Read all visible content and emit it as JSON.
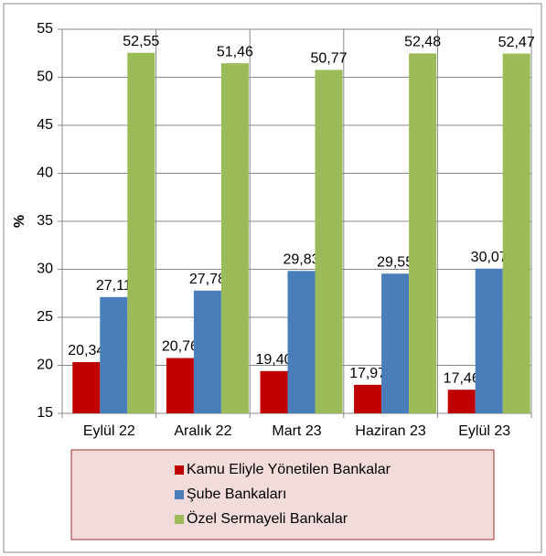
{
  "chart_data": {
    "type": "bar",
    "categories": [
      "Eylül 22",
      "Aralık 22",
      "Mart 23",
      "Haziran 23",
      "Eylül 23"
    ],
    "y_label": "%",
    "ylim": [
      15,
      55
    ],
    "yticks": [
      15,
      20,
      25,
      30,
      35,
      40,
      45,
      50,
      55
    ],
    "grid": true,
    "legend": "bottom",
    "series": [
      {
        "name": "Kamu Eliyle Yönetilen Bankalar",
        "color": "#c00000",
        "values": [
          20.34,
          20.76,
          19.4,
          17.97,
          17.46
        ],
        "value_labels": [
          "20,34",
          "20,76",
          "19,40",
          "17,97",
          "17,46"
        ]
      },
      {
        "name": "Şube Bankaları",
        "color": "#4a7ebb",
        "values": [
          27.11,
          27.78,
          29.83,
          29.55,
          30.07
        ],
        "value_labels": [
          "27,11",
          "27,78",
          "29,83",
          "29,55",
          "30,07"
        ]
      },
      {
        "name": "Özel Sermayeli Bankalar",
        "color": "#9bbb59",
        "values": [
          52.55,
          51.46,
          50.77,
          52.48,
          52.47
        ],
        "value_labels": [
          "52,55",
          "51,46",
          "50,77",
          "52,48",
          "52,47"
        ]
      }
    ]
  }
}
